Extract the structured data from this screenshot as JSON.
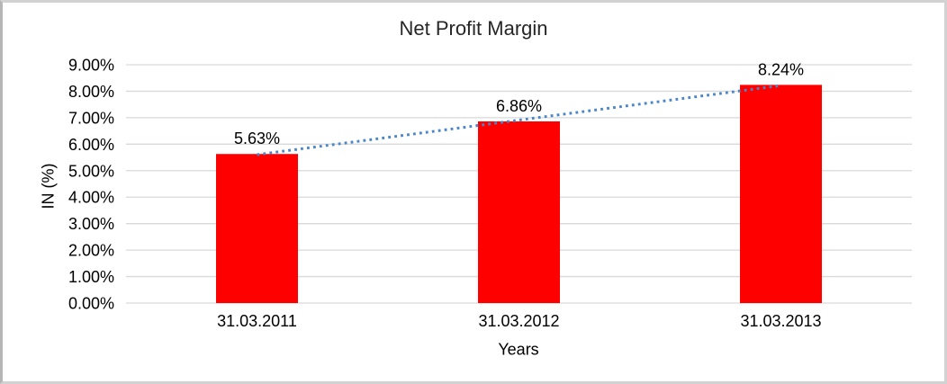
{
  "chart_data": {
    "type": "bar",
    "title": "Net Profit Margin",
    "xlabel": "Years",
    "ylabel": "IN (%)",
    "categories": [
      "31.03.2011",
      "31.03.2012",
      "31.03.2013"
    ],
    "values": [
      5.63,
      6.86,
      8.24
    ],
    "data_labels": [
      "5.63%",
      "6.86%",
      "8.24%"
    ],
    "ylim": [
      0,
      9
    ],
    "ytick_labels": [
      "0.00%",
      "1.00%",
      "2.00%",
      "3.00%",
      "4.00%",
      "5.00%",
      "6.00%",
      "7.00%",
      "8.00%",
      "9.00%"
    ],
    "grid": true,
    "legend": "none",
    "trendline": "linear-dotted",
    "colors": {
      "bar": "#ff0000",
      "trendline": "#4a86c8",
      "gridline": "#d9d9d9",
      "text": "#000000",
      "title_text": "#262626"
    }
  }
}
